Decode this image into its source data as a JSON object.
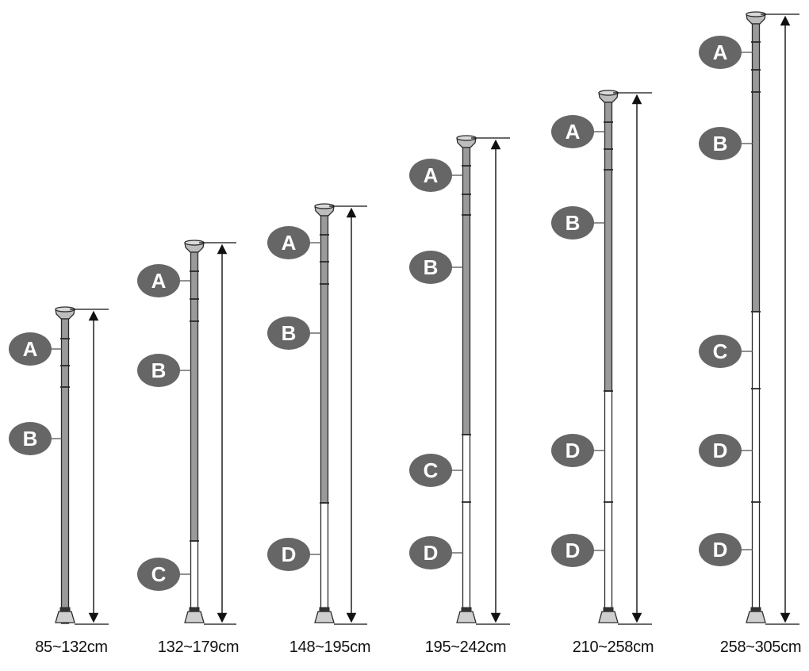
{
  "colors": {
    "segment_gray": "#9a9a9a",
    "segment_white": "#ffffff",
    "outline": "#2a2a2a",
    "badge_fill": "#666666",
    "badge_text": "#ffffff",
    "dimension_line": "#111111"
  },
  "poles": [
    {
      "range_label": "85~132cm",
      "segments": [
        "A",
        "B"
      ]
    },
    {
      "range_label": "132~179cm",
      "segments": [
        "A",
        "B",
        "C"
      ]
    },
    {
      "range_label": "148~195cm",
      "segments": [
        "A",
        "B",
        "D"
      ]
    },
    {
      "range_label": "195~242cm",
      "segments": [
        "A",
        "B",
        "C",
        "D"
      ]
    },
    {
      "range_label": "210~258cm",
      "segments": [
        "A",
        "B",
        "D",
        "D"
      ]
    },
    {
      "range_label": "258~305cm",
      "segments": [
        "A",
        "B",
        "C",
        "D",
        "D"
      ]
    }
  ]
}
